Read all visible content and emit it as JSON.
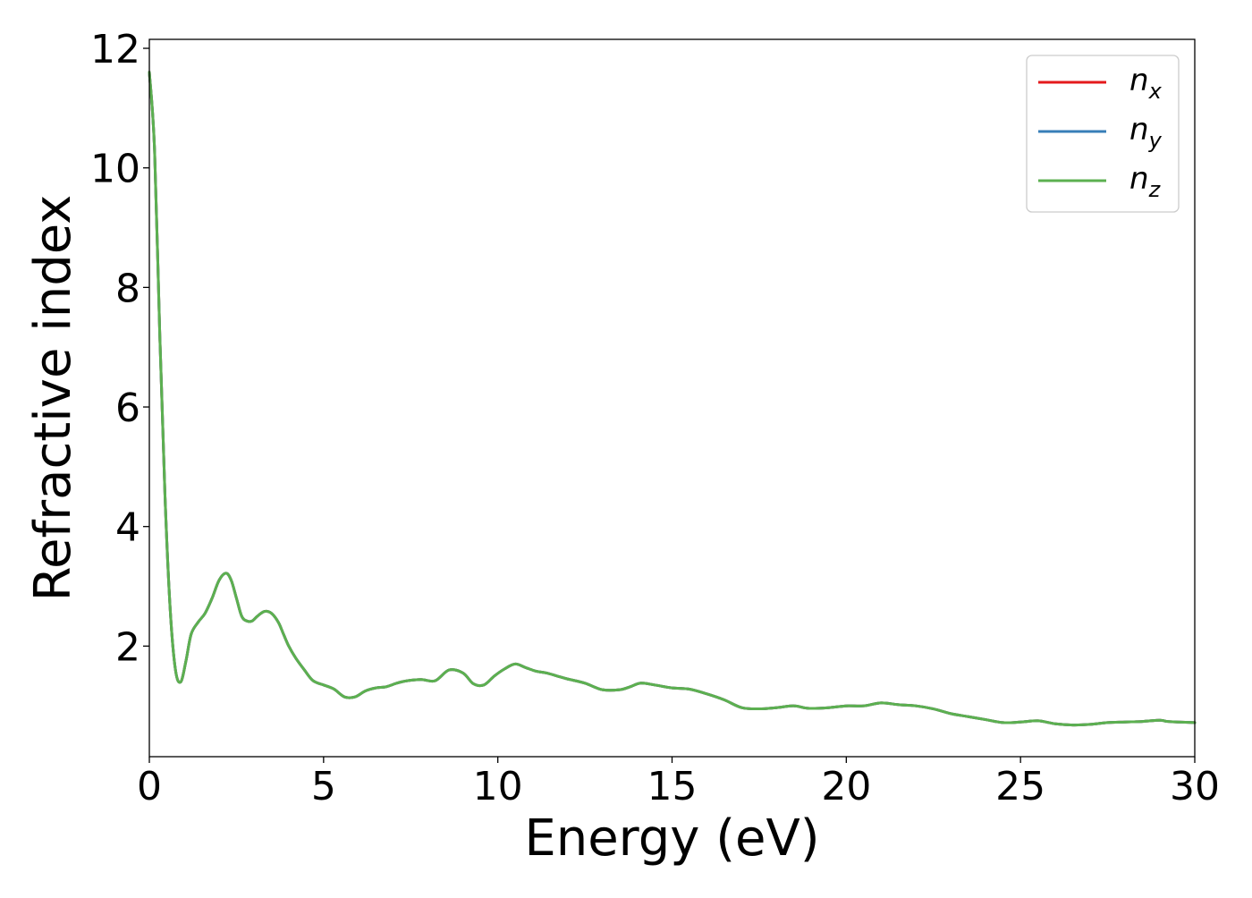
{
  "chart_data": {
    "type": "line",
    "xlabel": "Energy (eV)",
    "ylabel": "Refractive index",
    "xlim": [
      0,
      30
    ],
    "ylim": [
      0.15,
      12.15
    ],
    "xticks": [
      0,
      5,
      10,
      15,
      20,
      25,
      30
    ],
    "yticks": [
      2,
      4,
      6,
      8,
      10,
      12
    ],
    "grid": false,
    "legend_position": "top-right",
    "series": [
      {
        "name": "n",
        "subscript": "x",
        "color": "#e41a1c",
        "x": [
          0,
          0.15,
          0.3,
          0.45,
          0.6,
          0.75,
          0.9,
          1.05,
          1.2,
          1.4,
          1.6,
          1.8,
          2.0,
          2.2,
          2.35,
          2.5,
          2.65,
          2.8,
          2.95,
          3.1,
          3.3,
          3.5,
          3.7,
          3.85,
          4.0,
          4.2,
          4.45,
          4.7,
          5.0,
          5.3,
          5.6,
          5.9,
          6.2,
          6.5,
          6.8,
          7.1,
          7.4,
          7.8,
          8.2,
          8.6,
          9.0,
          9.3,
          9.6,
          9.9,
          10.2,
          10.5,
          10.8,
          11.1,
          11.4,
          11.7,
          12.0,
          12.5,
          13.0,
          13.5,
          13.8,
          14.1,
          14.5,
          15.0,
          15.5,
          16.0,
          16.5,
          17.0,
          17.5,
          18.0,
          18.5,
          18.9,
          19.5,
          20.0,
          20.5,
          21.0,
          21.5,
          22.0,
          22.5,
          23.0,
          23.5,
          24.0,
          24.5,
          25.0,
          25.5,
          26.0,
          26.5,
          27.0,
          27.5,
          28.0,
          28.5,
          29.0,
          29.2,
          29.5,
          30.0
        ],
        "y": [
          11.6,
          10.3,
          7.2,
          4.5,
          2.6,
          1.6,
          1.4,
          1.75,
          2.2,
          2.4,
          2.55,
          2.8,
          3.1,
          3.22,
          3.1,
          2.8,
          2.5,
          2.42,
          2.42,
          2.5,
          2.58,
          2.55,
          2.4,
          2.2,
          2.0,
          1.8,
          1.6,
          1.42,
          1.35,
          1.28,
          1.15,
          1.15,
          1.25,
          1.3,
          1.32,
          1.38,
          1.42,
          1.44,
          1.42,
          1.6,
          1.55,
          1.37,
          1.35,
          1.5,
          1.62,
          1.7,
          1.64,
          1.58,
          1.55,
          1.5,
          1.45,
          1.38,
          1.27,
          1.27,
          1.32,
          1.38,
          1.35,
          1.3,
          1.28,
          1.2,
          1.1,
          0.97,
          0.95,
          0.97,
          1.0,
          0.96,
          0.97,
          1.0,
          1.0,
          1.05,
          1.02,
          1.0,
          0.95,
          0.87,
          0.82,
          0.77,
          0.72,
          0.73,
          0.75,
          0.7,
          0.68,
          0.69,
          0.72,
          0.73,
          0.74,
          0.76,
          0.74,
          0.73,
          0.72
        ]
      },
      {
        "name": "n",
        "subscript": "y",
        "color": "#377eb8",
        "x": [
          0,
          0.15,
          0.3,
          0.45,
          0.6,
          0.75,
          0.9,
          1.05,
          1.2,
          1.4,
          1.6,
          1.8,
          2.0,
          2.2,
          2.35,
          2.5,
          2.65,
          2.8,
          2.95,
          3.1,
          3.3,
          3.5,
          3.7,
          3.85,
          4.0,
          4.2,
          4.45,
          4.7,
          5.0,
          5.3,
          5.6,
          5.9,
          6.2,
          6.5,
          6.8,
          7.1,
          7.4,
          7.8,
          8.2,
          8.6,
          9.0,
          9.3,
          9.6,
          9.9,
          10.2,
          10.5,
          10.8,
          11.1,
          11.4,
          11.7,
          12.0,
          12.5,
          13.0,
          13.5,
          13.8,
          14.1,
          14.5,
          15.0,
          15.5,
          16.0,
          16.5,
          17.0,
          17.5,
          18.0,
          18.5,
          18.9,
          19.5,
          20.0,
          20.5,
          21.0,
          21.5,
          22.0,
          22.5,
          23.0,
          23.5,
          24.0,
          24.5,
          25.0,
          25.5,
          26.0,
          26.5,
          27.0,
          27.5,
          28.0,
          28.5,
          29.0,
          29.2,
          29.5,
          30.0
        ],
        "y": [
          11.6,
          10.3,
          7.2,
          4.5,
          2.6,
          1.6,
          1.4,
          1.75,
          2.2,
          2.4,
          2.55,
          2.8,
          3.1,
          3.22,
          3.1,
          2.8,
          2.5,
          2.42,
          2.42,
          2.5,
          2.58,
          2.55,
          2.4,
          2.2,
          2.0,
          1.8,
          1.6,
          1.42,
          1.35,
          1.28,
          1.15,
          1.15,
          1.25,
          1.3,
          1.32,
          1.38,
          1.42,
          1.44,
          1.42,
          1.6,
          1.55,
          1.37,
          1.35,
          1.5,
          1.62,
          1.7,
          1.64,
          1.58,
          1.55,
          1.5,
          1.45,
          1.38,
          1.27,
          1.27,
          1.32,
          1.38,
          1.35,
          1.3,
          1.28,
          1.2,
          1.1,
          0.97,
          0.95,
          0.97,
          1.0,
          0.96,
          0.97,
          1.0,
          1.0,
          1.05,
          1.02,
          1.0,
          0.95,
          0.87,
          0.82,
          0.77,
          0.72,
          0.73,
          0.75,
          0.7,
          0.68,
          0.69,
          0.72,
          0.73,
          0.74,
          0.76,
          0.74,
          0.73,
          0.72
        ]
      },
      {
        "name": "n",
        "subscript": "z",
        "color": "#5cb050",
        "x": [
          0,
          0.15,
          0.3,
          0.45,
          0.6,
          0.75,
          0.9,
          1.05,
          1.2,
          1.4,
          1.6,
          1.8,
          2.0,
          2.2,
          2.35,
          2.5,
          2.65,
          2.8,
          2.95,
          3.1,
          3.3,
          3.5,
          3.7,
          3.85,
          4.0,
          4.2,
          4.45,
          4.7,
          5.0,
          5.3,
          5.6,
          5.9,
          6.2,
          6.5,
          6.8,
          7.1,
          7.4,
          7.8,
          8.2,
          8.6,
          9.0,
          9.3,
          9.6,
          9.9,
          10.2,
          10.5,
          10.8,
          11.1,
          11.4,
          11.7,
          12.0,
          12.5,
          13.0,
          13.5,
          13.8,
          14.1,
          14.5,
          15.0,
          15.5,
          16.0,
          16.5,
          17.0,
          17.5,
          18.0,
          18.5,
          18.9,
          19.5,
          20.0,
          20.5,
          21.0,
          21.5,
          22.0,
          22.5,
          23.0,
          23.5,
          24.0,
          24.5,
          25.0,
          25.5,
          26.0,
          26.5,
          27.0,
          27.5,
          28.0,
          28.5,
          29.0,
          29.2,
          29.5,
          30.0
        ],
        "y": [
          11.6,
          10.3,
          7.2,
          4.5,
          2.6,
          1.6,
          1.4,
          1.75,
          2.2,
          2.4,
          2.55,
          2.8,
          3.1,
          3.22,
          3.1,
          2.8,
          2.5,
          2.42,
          2.42,
          2.5,
          2.58,
          2.55,
          2.4,
          2.2,
          2.0,
          1.8,
          1.6,
          1.42,
          1.35,
          1.28,
          1.15,
          1.15,
          1.25,
          1.3,
          1.32,
          1.38,
          1.42,
          1.44,
          1.42,
          1.6,
          1.55,
          1.37,
          1.35,
          1.5,
          1.62,
          1.7,
          1.64,
          1.58,
          1.55,
          1.5,
          1.45,
          1.38,
          1.27,
          1.27,
          1.32,
          1.38,
          1.35,
          1.3,
          1.28,
          1.2,
          1.1,
          0.97,
          0.95,
          0.97,
          1.0,
          0.96,
          0.97,
          1.0,
          1.0,
          1.05,
          1.02,
          1.0,
          0.95,
          0.87,
          0.82,
          0.77,
          0.72,
          0.73,
          0.75,
          0.7,
          0.68,
          0.69,
          0.72,
          0.73,
          0.74,
          0.76,
          0.74,
          0.73,
          0.72
        ]
      }
    ]
  }
}
